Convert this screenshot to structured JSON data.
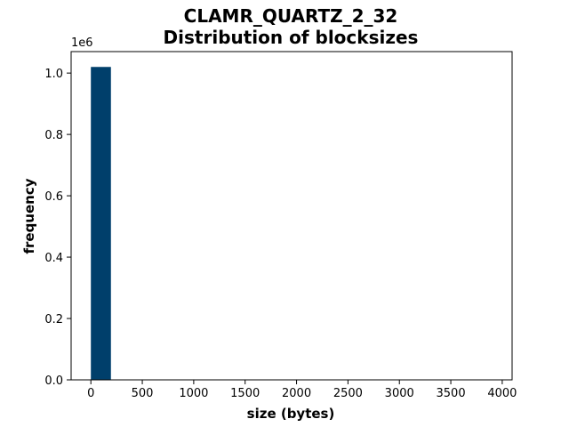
{
  "chart_data": {
    "type": "bar",
    "title": "CLAMR_QUARTZ_2_32",
    "subtitle": "Distribution of blocksizes",
    "xlabel": "size (bytes)",
    "ylabel": "frequency",
    "y_offset_label": "1e6",
    "xlim": [
      -192,
      4096
    ],
    "ylim": [
      0,
      1.07
    ],
    "x_ticks": [
      0,
      500,
      1000,
      1500,
      2000,
      2500,
      3000,
      3500,
      4000
    ],
    "x_tick_labels": [
      "0",
      "500",
      "1000",
      "1500",
      "2000",
      "2500",
      "3000",
      "3500",
      "4000"
    ],
    "y_ticks": [
      0,
      0.2,
      0.4,
      0.6,
      0.8,
      1.0
    ],
    "y_tick_labels": [
      "0.0",
      "0.2",
      "0.4",
      "0.6",
      "0.8",
      "1.0"
    ],
    "bar_color": "#003f6b",
    "bins": [
      {
        "start": 0,
        "end": 195,
        "value": 1.02
      }
    ],
    "grid": false,
    "legend": "none"
  }
}
